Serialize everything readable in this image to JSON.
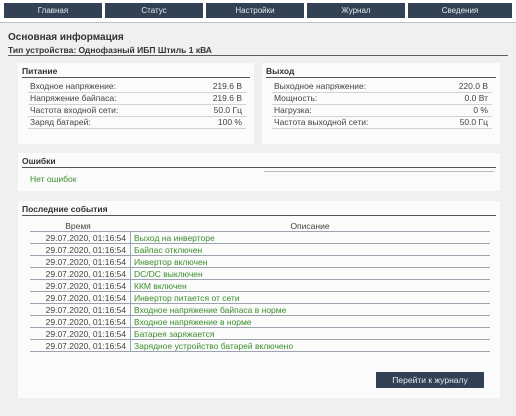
{
  "nav": {
    "tabs": [
      {
        "label": "Главная"
      },
      {
        "label": "Статус"
      },
      {
        "label": "Настройки"
      },
      {
        "label": "Журнал"
      },
      {
        "label": "Сведения"
      }
    ]
  },
  "header": {
    "title": "Основная информация",
    "device": "Тип устройства: Однофазный ИБП Штиль 1 кВА"
  },
  "power": {
    "title": "Питание",
    "rows": [
      {
        "label": "Входное напряжение:",
        "value": "219.6 В"
      },
      {
        "label": "Напряжение байпаса:",
        "value": "219.6 В"
      },
      {
        "label": "Частота входной сети:",
        "value": "50.0 Гц"
      },
      {
        "label": "Заряд батарей:",
        "value": "100 %"
      }
    ]
  },
  "output": {
    "title": "Выход",
    "rows": [
      {
        "label": "Выходное напряжение:",
        "value": "220.0 В"
      },
      {
        "label": "Мощность:",
        "value": "0.0 Вт"
      },
      {
        "label": "Нагрузка:",
        "value": "0 %"
      },
      {
        "label": "Частота выходной сети:",
        "value": "50.0 Гц"
      }
    ]
  },
  "errors": {
    "title": "Ошибки",
    "text": "Нет ошибок"
  },
  "events": {
    "title": "Последние события",
    "col_time": "Время",
    "col_desc": "Описание",
    "rows": [
      {
        "time": "29.07.2020, 01:16:54",
        "desc": "Выход на инверторе"
      },
      {
        "time": "29.07.2020, 01:16:54",
        "desc": "Байпас отключен"
      },
      {
        "time": "29.07.2020, 01:16:54",
        "desc": "Инвертор включен"
      },
      {
        "time": "29.07.2020, 01:16:54",
        "desc": "DC/DC выключен"
      },
      {
        "time": "29.07.2020, 01:16:54",
        "desc": "ККМ включен"
      },
      {
        "time": "29.07.2020, 01:16:54",
        "desc": "Инвертор питается от сети"
      },
      {
        "time": "29.07.2020, 01:16:54",
        "desc": "Входное напряжение байпаса в норме"
      },
      {
        "time": "29.07.2020, 01:16:54",
        "desc": "Входное напряжение в норме"
      },
      {
        "time": "29.07.2020, 01:16:54",
        "desc": "Батарея заряжается"
      },
      {
        "time": "29.07.2020, 01:16:54",
        "desc": "Зарядное устройство батарей включено"
      }
    ],
    "button_label": "Перейти к журналу"
  }
}
